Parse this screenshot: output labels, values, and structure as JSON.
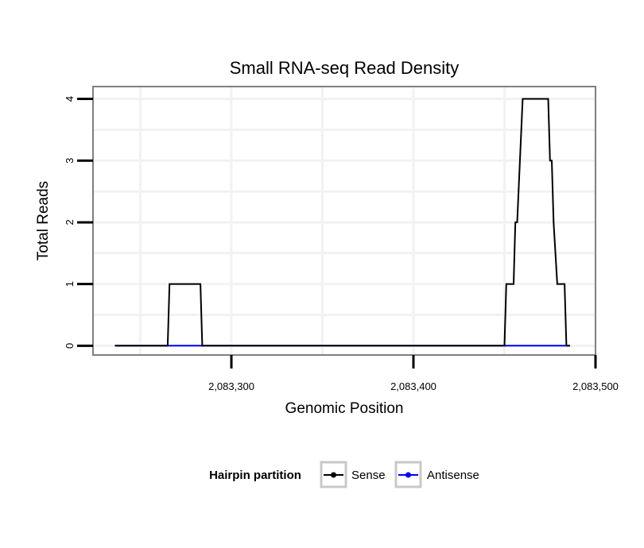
{
  "chart_data": {
    "type": "line",
    "title": "Small RNA-seq Read Density",
    "xlabel": "Genomic Position",
    "ylabel": "Total Reads",
    "xlim": [
      2083224,
      2083500
    ],
    "ylim": [
      -0.15,
      4.2
    ],
    "x_ticks": [
      2083300,
      2083400,
      2083500
    ],
    "x_tick_labels": [
      "2,083,300",
      "2,083,400",
      "2,083,500"
    ],
    "y_ticks": [
      0,
      1,
      2,
      3,
      4
    ],
    "y_tick_labels": [
      "0",
      "1",
      "2",
      "3",
      "4"
    ],
    "grid": true,
    "legend": {
      "title": "Hairpin partition",
      "position": "bottom",
      "entries": [
        {
          "name": "Sense",
          "color": "#000000"
        },
        {
          "name": "Antisense",
          "color": "#0000ff"
        }
      ]
    },
    "series": [
      {
        "name": "Sense",
        "color": "#000000",
        "x": [
          2083236,
          2083265,
          2083266,
          2083283,
          2083284,
          2083286,
          2083450,
          2083451,
          2083455,
          2083456,
          2083457,
          2083460,
          2083462,
          2083474,
          2083475,
          2083476,
          2083477,
          2083479,
          2083483,
          2083484,
          2083486
        ],
        "y": [
          0,
          0,
          1,
          1,
          0,
          0,
          0,
          1,
          1,
          2,
          2,
          4,
          4,
          4,
          3,
          3,
          2,
          1,
          1,
          0,
          0
        ]
      },
      {
        "name": "Antisense",
        "color": "#0000ff",
        "x": [
          2083236,
          2083486
        ],
        "y": [
          0,
          0
        ]
      }
    ]
  }
}
